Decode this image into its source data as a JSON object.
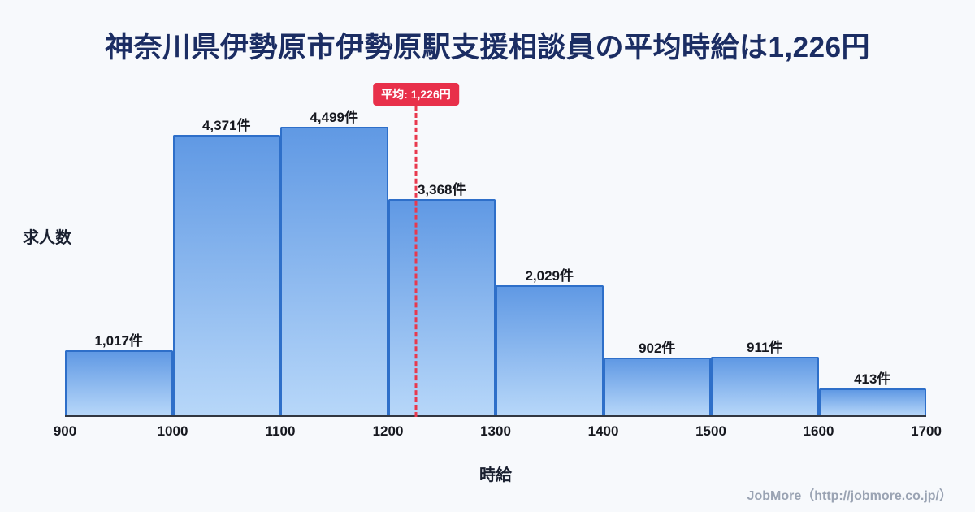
{
  "title": "神奈川県伊勢原市伊勢原駅支援相談員の平均時給は1,226円",
  "chart_data": {
    "type": "bar",
    "subtype": "histogram",
    "title": "神奈川県伊勢原市伊勢原駅支援相談員の平均時給は1,226円",
    "xlabel": "時給",
    "ylabel": "求人数",
    "bin_edges": [
      900,
      1000,
      1100,
      1200,
      1300,
      1400,
      1500,
      1600,
      1700
    ],
    "values": [
      1017,
      4371,
      4499,
      3368,
      2029,
      902,
      911,
      413
    ],
    "bar_labels": [
      "1,017件",
      "4,371件",
      "4,499件",
      "3,368件",
      "2,029件",
      "902件",
      "911件",
      "413件"
    ],
    "ylim": [
      0,
      4700
    ],
    "grid": false,
    "legend": false,
    "average": {
      "value": 1226,
      "label": "平均: 1,226円",
      "line_color": "#e8394e",
      "badge_color": "#e8304a"
    },
    "colors": {
      "bar_fill_top": "#6099e4",
      "bar_fill_bottom": "#b7d7f9",
      "bar_border": "#2e6fc9",
      "background": "#f7f9fc",
      "title_color": "#1b2d63"
    }
  },
  "footer": {
    "attribution": "JobMore（http://jobmore.co.jp/）"
  }
}
